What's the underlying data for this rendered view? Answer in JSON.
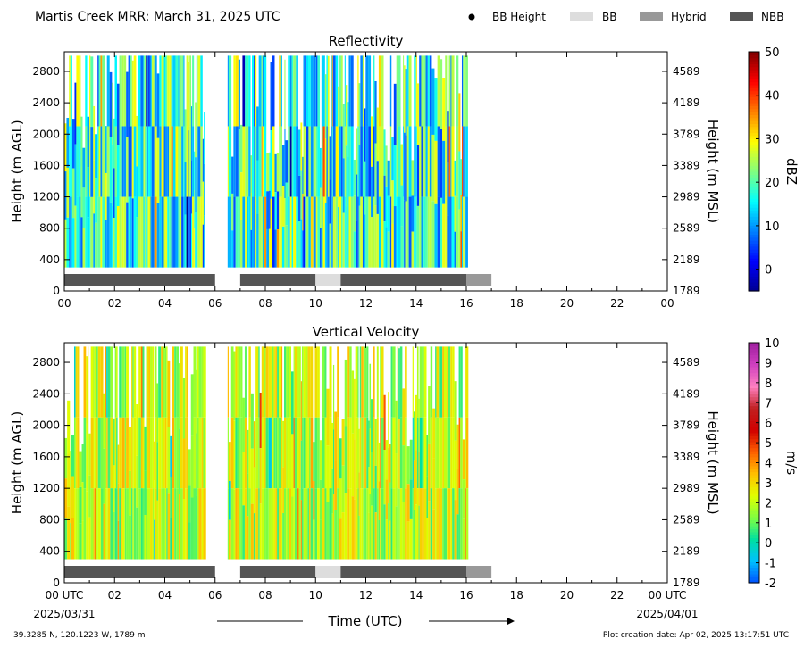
{
  "header": {
    "title": "Martis Creek MRR:  March 31, 2025 UTC",
    "legend": [
      {
        "label": "BB Height",
        "marker": "dot",
        "color": "#000000"
      },
      {
        "label": "BB",
        "marker": "box",
        "color": "#dddddd"
      },
      {
        "label": "Hybrid",
        "marker": "box",
        "color": "#999999"
      },
      {
        "label": "NBB",
        "marker": "box",
        "color": "#555555"
      }
    ]
  },
  "footer": {
    "location": "39.3285 N, 120.1223 W, 1789 m",
    "creation": "Plot creation date: Apr 02, 2025 13:17:51 UTC",
    "xlabel": "Time (UTC)",
    "start_date": "2025/03/31",
    "end_date": "2025/04/01"
  },
  "chart_data": [
    {
      "type": "heatmap",
      "title": "Reflectivity",
      "ylabel_left": "Height (m AGL)",
      "ylabel_right": "Height (m MSL)",
      "colorbar_label": "dBZ",
      "x_ticks": [
        "00",
        "02",
        "04",
        "06",
        "08",
        "10",
        "12",
        "14",
        "16",
        "18",
        "20",
        "22",
        "00"
      ],
      "xlim_hours": [
        0,
        24
      ],
      "ylim_m_agl": [
        0,
        3050
      ],
      "y_ticks_agl": [
        0,
        400,
        800,
        1200,
        1600,
        2000,
        2400,
        2800
      ],
      "y_ticks_msl": [
        1789,
        2189,
        2589,
        2989,
        3389,
        3789,
        4189,
        4589
      ],
      "colorbar_range": [
        -5,
        50
      ],
      "colorbar_ticks": [
        0,
        10,
        20,
        30,
        40,
        50
      ],
      "data_extent_m_agl": [
        300,
        3000
      ],
      "data_segments_hours": [
        [
          0.0,
          5.6
        ],
        [
          6.5,
          16.0
        ]
      ],
      "typical_value_range": [
        5,
        30
      ],
      "bright_band_class_bars": [
        {
          "class": "NBB",
          "start": 0.0,
          "end": 6.0
        },
        {
          "class": "NBB",
          "start": 7.0,
          "end": 10.0
        },
        {
          "class": "BB",
          "start": 10.0,
          "end": 11.0
        },
        {
          "class": "NBB",
          "start": 11.0,
          "end": 16.0
        },
        {
          "class": "Hybrid",
          "start": 16.0,
          "end": 17.0
        }
      ]
    },
    {
      "type": "heatmap",
      "title": "Vertical Velocity",
      "ylabel_left": "Height (m AGL)",
      "ylabel_right": "Height (m MSL)",
      "colorbar_label": "m/s",
      "x_ticks": [
        "00 UTC",
        "02",
        "04",
        "06",
        "08",
        "10",
        "12",
        "14",
        "16",
        "18",
        "20",
        "22",
        "00 UTC"
      ],
      "xlim_hours": [
        0,
        24
      ],
      "ylim_m_agl": [
        0,
        3050
      ],
      "y_ticks_agl": [
        0,
        400,
        800,
        1200,
        1600,
        2000,
        2400,
        2800
      ],
      "y_ticks_msl": [
        1789,
        2189,
        2589,
        2989,
        3389,
        3789,
        4189,
        4589
      ],
      "colorbar_range": [
        -2,
        10
      ],
      "colorbar_ticks": [
        -2,
        -1,
        0,
        1,
        2,
        3,
        4,
        5,
        6,
        7,
        8,
        9,
        10
      ],
      "data_extent_m_agl": [
        300,
        3000
      ],
      "data_segments_hours": [
        [
          0.0,
          5.6
        ],
        [
          6.5,
          16.0
        ]
      ],
      "typical_value_range": [
        0.5,
        3.5
      ],
      "bright_band_class_bars": [
        {
          "class": "NBB",
          "start": 0.0,
          "end": 6.0
        },
        {
          "class": "NBB",
          "start": 7.0,
          "end": 10.0
        },
        {
          "class": "BB",
          "start": 10.0,
          "end": 11.0
        },
        {
          "class": "NBB",
          "start": 11.0,
          "end": 16.0
        },
        {
          "class": "Hybrid",
          "start": 16.0,
          "end": 17.0
        }
      ]
    }
  ],
  "colors": {
    "BB": "#dddddd",
    "Hybrid": "#999999",
    "NBB": "#555555",
    "dbz_colormap": [
      "#00008f",
      "#0000ff",
      "#0080ff",
      "#00ffff",
      "#80ff80",
      "#ffff00",
      "#ff8000",
      "#ff0000",
      "#800000"
    ],
    "vv_colormap": [
      "#0050ff",
      "#00c0ff",
      "#00e0a0",
      "#80ff40",
      "#e0ff00",
      "#ffc000",
      "#ff6000",
      "#d00000",
      "#c02020",
      "#ff80c0",
      "#d040c0",
      "#a020a0"
    ]
  }
}
